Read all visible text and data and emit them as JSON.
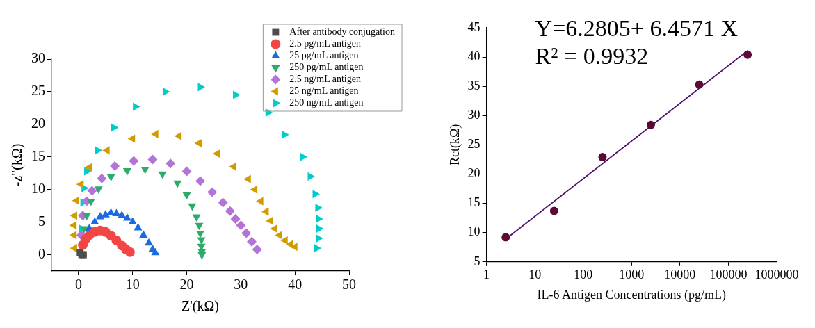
{
  "chart_data": [
    {
      "type": "scatter",
      "xlabel": "Z'(kΩ)",
      "ylabel": "-z\"(kΩ)",
      "xlim": [
        -5,
        50
      ],
      "ylim": [
        -2.5,
        30
      ],
      "xticks": [
        0,
        10,
        20,
        30,
        40,
        50
      ],
      "yticks": [
        0,
        5,
        10,
        15,
        20,
        25,
        30
      ],
      "legend": "top right",
      "series": [
        {
          "name": "After antibody conjugation",
          "color": "#4d4d4d",
          "marker": "square",
          "x": [
            0.3,
            0.6,
            0.9
          ],
          "values": [
            0.3,
            0,
            0
          ]
        },
        {
          "name": "2.5 pg/mL antigen",
          "color": "#f44545",
          "marker": "circle",
          "x": [
            0.8,
            1.3,
            2,
            3,
            4,
            5,
            6,
            7,
            8,
            8.8,
            9.5
          ],
          "values": [
            1.5,
            2.4,
            3,
            3.5,
            3.7,
            3.5,
            2.9,
            2.2,
            1.4,
            0.8,
            0.4
          ]
        },
        {
          "name": "25 pg/mL antigen",
          "color": "#1a6ae0",
          "marker": "triangle",
          "x": [
            2,
            3,
            4,
            5,
            6,
            7,
            8,
            9,
            10,
            11,
            12,
            13,
            13.7,
            14.2
          ],
          "values": [
            4,
            5,
            5.8,
            6.1,
            6.4,
            6.3,
            6,
            5.6,
            5,
            4.1,
            3,
            1.8,
            0.8,
            0.3
          ]
        },
        {
          "name": "250 pg/mL antigen",
          "color": "#2eaa6a",
          "marker": "triangle-down",
          "x": [
            1,
            1.5,
            2.3,
            3.7,
            6,
            9,
            12.3,
            15.5,
            18.3,
            20,
            21,
            21.8,
            22.3,
            22.5,
            22.7,
            22.7,
            22.8,
            22.8
          ],
          "values": [
            4,
            6,
            8.2,
            10.1,
            12,
            12.9,
            13.1,
            12.4,
            11,
            9.2,
            7.5,
            5.8,
            4.5,
            3.3,
            2.3,
            1.3,
            0.5,
            0
          ]
        },
        {
          "name": "2.5 ng/mL antigen",
          "color": "#b473d9",
          "marker": "diamond",
          "x": [
            0.5,
            0.8,
            1.5,
            2.5,
            4.3,
            6.7,
            10.2,
            13.7,
            17,
            20,
            22.5,
            24.7,
            26.7,
            28,
            29,
            30,
            31,
            32,
            33
          ],
          "values": [
            3,
            6,
            8.2,
            9.8,
            11.7,
            13.6,
            14.4,
            14.6,
            14,
            12.8,
            11.3,
            9.6,
            8,
            6.7,
            5.5,
            4.5,
            3.3,
            2,
            0.8
          ]
        },
        {
          "name": "25 ng/mL antigen",
          "color": "#d19c00",
          "marker": "triangle-left",
          "x": [
            -0.7,
            -0.8,
            -0.8,
            -0.7,
            -0.3,
            0.5,
            2,
            5.3,
            10,
            14.3,
            18.6,
            22.3,
            25.7,
            28.7,
            31.4,
            32.6,
            33.7,
            34.7,
            35.5,
            36.3,
            37.2,
            38.2,
            39.2,
            40
          ],
          "values": [
            1,
            3,
            4.5,
            6,
            8.3,
            10.8,
            13.4,
            16,
            17.8,
            18.5,
            18.2,
            17.1,
            15.5,
            13.5,
            11.6,
            10,
            8.2,
            6.6,
            5.2,
            4,
            3,
            2.2,
            1.6,
            1.2
          ]
        },
        {
          "name": "250 ng/mL antigen",
          "color": "#00cccc",
          "marker": "triangle-right",
          "x": [
            0.5,
            0.8,
            1,
            1.5,
            3.5,
            6.5,
            10.5,
            16,
            22.5,
            29,
            35,
            38,
            41.4,
            42.8,
            43.7,
            44.2,
            44.3,
            44.4,
            44.3,
            44
          ],
          "values": [
            4,
            8,
            10.2,
            12.8,
            16,
            19.5,
            22.7,
            25,
            25.7,
            24.5,
            21.8,
            18.4,
            15,
            12,
            9.3,
            7.2,
            5.5,
            4,
            2.5,
            1
          ]
        }
      ]
    },
    {
      "type": "scatter",
      "xlabel": "IL-6 Antigen Concentrations (pg/mL)",
      "ylabel": "Rct(kΩ)",
      "log": "x",
      "xlim": [
        1,
        1000000
      ],
      "ylim": [
        5,
        45
      ],
      "xticks": [
        1,
        10,
        100,
        1000,
        10000,
        100000,
        1000000
      ],
      "yticks": [
        5,
        10,
        15,
        20,
        25,
        30,
        35,
        40,
        45
      ],
      "annotations": [
        "Y=6.2805+ 6.4571 X",
        "R² = 0.9932"
      ],
      "series": [
        {
          "color": "#5c0a35",
          "marker": "circle",
          "x": [
            2.5,
            25,
            250,
            2500,
            25000,
            250000
          ],
          "values": [
            9.2,
            13.7,
            22.9,
            28.4,
            35.3,
            40.4
          ]
        },
        {
          "type": "line",
          "color": "#4b0f6b",
          "marker": "none",
          "x": [
            2.5,
            250000
          ],
          "values": [
            8.9,
            41.1
          ]
        }
      ]
    }
  ]
}
